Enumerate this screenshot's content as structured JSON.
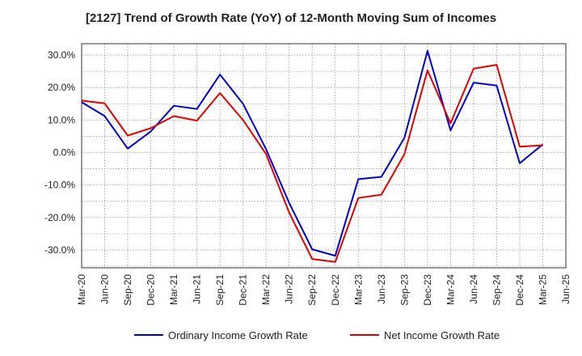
{
  "chart_data": {
    "type": "line",
    "title": "[2127]  Trend of Growth Rate (YoY) of 12-Month Moving Sum of Incomes",
    "x_categories": [
      "Mar-20",
      "Jun-20",
      "Sep-20",
      "Dec-20",
      "Mar-21",
      "Jun-21",
      "Sep-21",
      "Dec-21",
      "Mar-22",
      "Jun-22",
      "Sep-22",
      "Dec-22",
      "Mar-23",
      "Jun-23",
      "Sep-23",
      "Dec-23",
      "Mar-24",
      "Jun-24",
      "Sep-24",
      "Dec-24",
      "Mar-25",
      "Jun-25"
    ],
    "y_ticks": [
      30,
      20,
      10,
      0,
      -10,
      -20,
      -30
    ],
    "y_tick_labels": [
      "30.0%",
      "20.0%",
      "10.0%",
      "0.0%",
      "-10.0%",
      "-20.0%",
      "-30.0%"
    ],
    "ylim": [
      -35.5,
      33.5
    ],
    "grid": true,
    "legend_position": "bottom",
    "series": [
      {
        "name": "Ordinary Income Growth Rate",
        "color": "#0000cc",
        "values": [
          15.5,
          11.2,
          1.2,
          6.5,
          14.4,
          13.4,
          24.0,
          15.0,
          1.0,
          -15.5,
          -29.8,
          -31.8,
          -8.2,
          -7.5,
          4.5,
          31.3,
          6.8,
          21.5,
          20.6,
          -3.3,
          2.5,
          null
        ]
      },
      {
        "name": "Net Income Growth Rate",
        "color": "#dd0000",
        "values": [
          16.0,
          15.1,
          5.2,
          7.5,
          11.2,
          9.8,
          18.3,
          10.0,
          -0.5,
          -18.5,
          -32.8,
          -33.7,
          -14.0,
          -13.0,
          -0.5,
          25.3,
          9.0,
          25.8,
          27.0,
          1.8,
          2.2,
          null
        ]
      }
    ]
  }
}
